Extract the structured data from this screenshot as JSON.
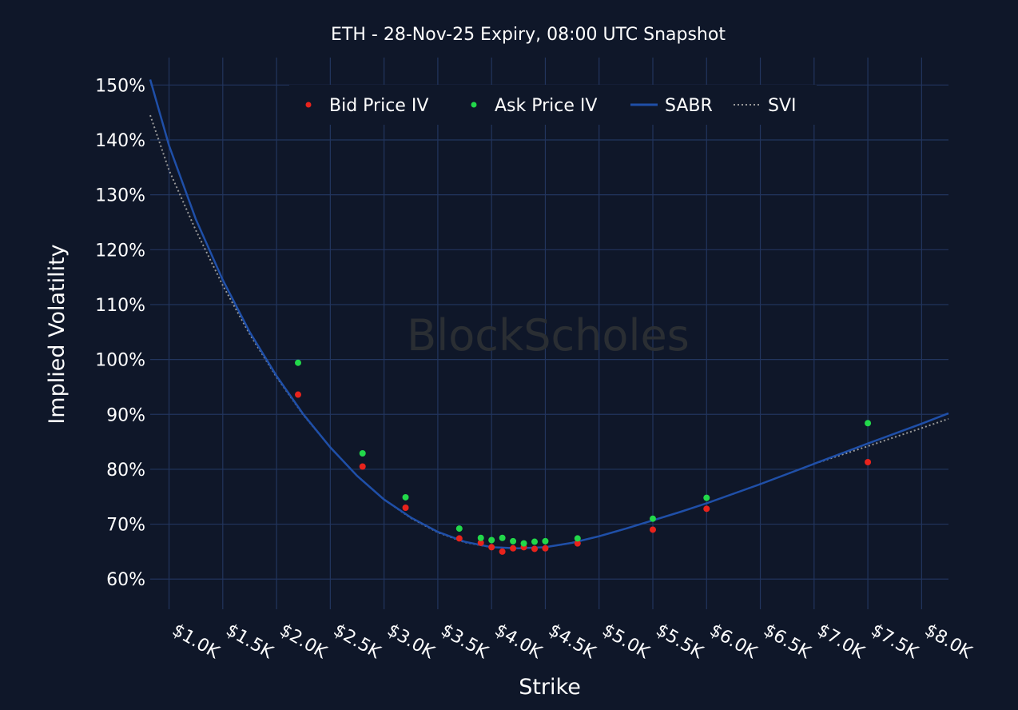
{
  "watermark": "BlockScholes",
  "colors": {
    "background": "#0f1729",
    "grid": "#22355e",
    "bid": "#e8231c",
    "ask": "#22d84a",
    "sabr": "#1f4fa8",
    "svi": "#9a9a9a",
    "text": "#ffffff"
  },
  "chart_data": {
    "type": "scatter",
    "title": "ETH - 28-Nov-25 Expiry, 08:00 UTC Snapshot",
    "xlabel": "Strike",
    "ylabel": "Implied Volatility",
    "xlim": [
      825,
      8250
    ],
    "ylim": [
      54.5,
      155
    ],
    "x_ticks": [
      1000,
      1500,
      2000,
      2500,
      3000,
      3500,
      4000,
      4500,
      5000,
      5500,
      6000,
      6500,
      7000,
      7500,
      8000
    ],
    "x_tick_labels": [
      "$1.0K",
      "$1.5K",
      "$2.0K",
      "$2.5K",
      "$3.0K",
      "$3.5K",
      "$4.0K",
      "$4.5K",
      "$5.0K",
      "$5.5K",
      "$6.0K",
      "$6.5K",
      "$7.0K",
      "$7.5K",
      "$8.0K"
    ],
    "y_ticks": [
      60,
      70,
      80,
      90,
      100,
      110,
      120,
      130,
      140,
      150
    ],
    "y_tick_labels": [
      "60%",
      "70%",
      "80%",
      "90%",
      "100%",
      "110%",
      "120%",
      "130%",
      "140%",
      "150%"
    ],
    "grid": true,
    "legend_position": "top-center",
    "series": [
      {
        "name": "Bid Price IV",
        "kind": "markers",
        "x": [
          2200,
          2800,
          3200,
          3700,
          3900,
          4000,
          4100,
          4200,
          4300,
          4400,
          4500,
          4800,
          5500,
          6000,
          7500
        ],
        "y": [
          93.6,
          80.5,
          73.0,
          67.4,
          66.6,
          65.8,
          65.0,
          65.6,
          65.8,
          65.5,
          65.6,
          66.5,
          69.0,
          72.8,
          81.3
        ]
      },
      {
        "name": "Ask Price IV",
        "kind": "markers",
        "x": [
          2200,
          2800,
          3200,
          3700,
          3900,
          4000,
          4100,
          4200,
          4300,
          4400,
          4500,
          4800,
          5500,
          6000,
          7500
        ],
        "y": [
          99.4,
          82.9,
          74.9,
          69.2,
          67.5,
          67.1,
          67.5,
          66.9,
          66.5,
          66.8,
          66.9,
          67.4,
          71.0,
          74.8,
          88.4
        ]
      },
      {
        "name": "SABR",
        "kind": "line",
        "x": [
          825,
          1000,
          1250,
          1500,
          1750,
          2000,
          2250,
          2500,
          2750,
          3000,
          3250,
          3500,
          3750,
          4000,
          4250,
          4500,
          4750,
          5000,
          5250,
          5500,
          5750,
          6000,
          6500,
          7000,
          7500,
          8000,
          8250
        ],
        "y": [
          151.0,
          139.0,
          125.5,
          114.5,
          105.0,
          97.0,
          90.0,
          84.0,
          78.8,
          74.5,
          71.2,
          68.6,
          66.8,
          65.8,
          65.6,
          65.8,
          66.6,
          67.8,
          69.2,
          70.7,
          72.2,
          73.8,
          77.3,
          81.0,
          84.7,
          88.3,
          90.2
        ]
      },
      {
        "name": "SVI",
        "kind": "dotted-line",
        "x": [
          825,
          1000,
          1250,
          1500,
          1750,
          2000,
          2250,
          2500,
          2750,
          3000,
          3250,
          3500,
          3750,
          4000,
          4250,
          4500,
          4750,
          5000,
          5250,
          5500,
          5750,
          6000,
          6500,
          7000,
          7500,
          8000,
          8250
        ],
        "y": [
          144.5,
          134.5,
          123.5,
          113.5,
          104.6,
          96.8,
          89.9,
          84.0,
          78.8,
          74.5,
          71.1,
          68.5,
          66.7,
          65.8,
          65.6,
          65.8,
          66.6,
          67.8,
          69.2,
          70.7,
          72.2,
          73.8,
          77.3,
          81.0,
          84.2,
          87.5,
          89.2
        ]
      }
    ]
  }
}
